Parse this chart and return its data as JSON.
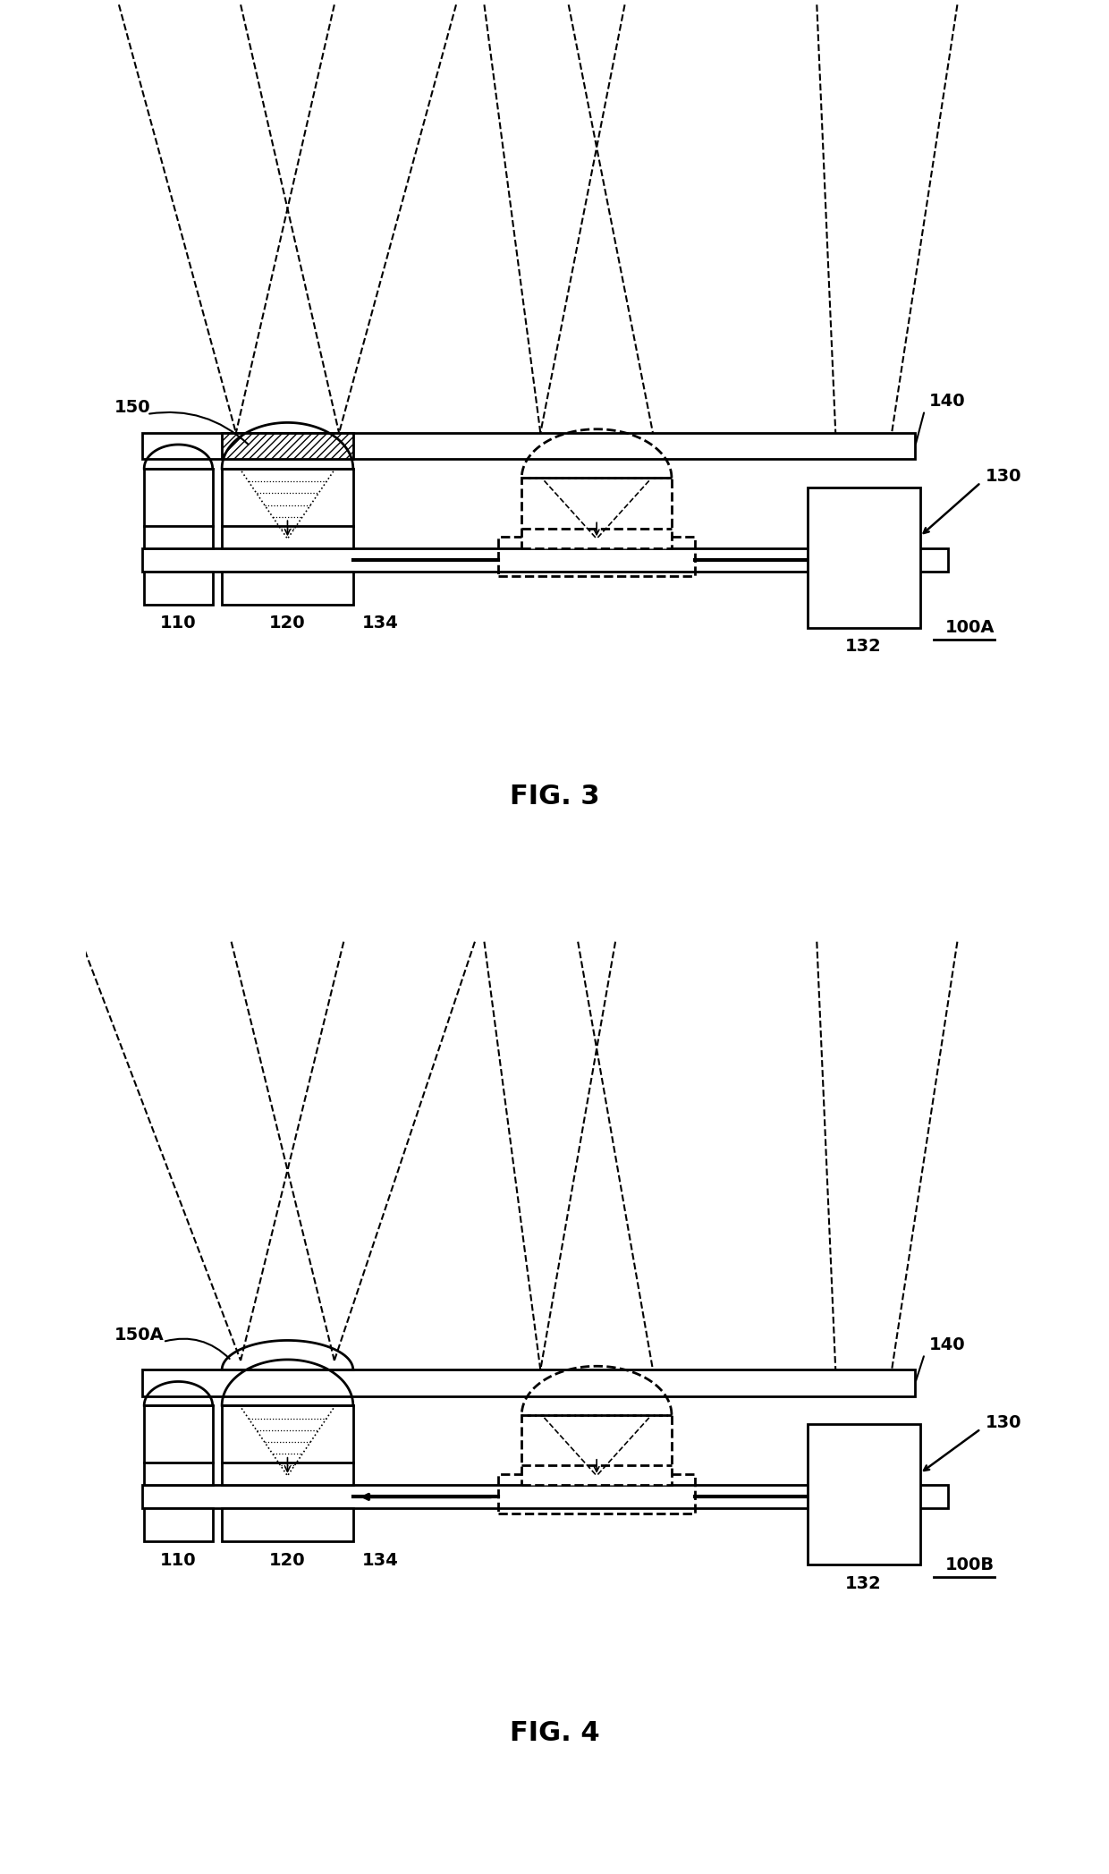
{
  "fig_width": 12.4,
  "fig_height": 20.95,
  "bg_color": "#ffffff",
  "lc": "#000000",
  "lw": 2.0,
  "fig3_title": "FIG. 3",
  "fig4_title": "FIG. 4",
  "labels": {
    "110": "110",
    "120": "120",
    "130": "130",
    "132": "132",
    "134": "134",
    "140": "140",
    "150": "150",
    "150A": "150A",
    "100A": "100A",
    "100B": "100B"
  }
}
